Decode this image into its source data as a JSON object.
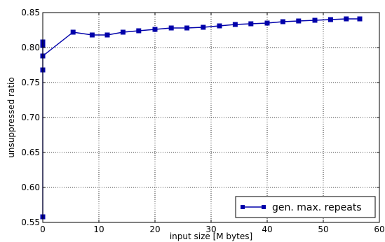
{
  "chart_data": {
    "type": "line",
    "title": "",
    "xlabel": "input size [M bytes]",
    "ylabel": "unsuppressed ratio",
    "xlim": [
      0,
      60
    ],
    "ylim": [
      0.55,
      0.85
    ],
    "xticks": [
      0,
      10,
      20,
      30,
      40,
      50,
      60
    ],
    "yticks": [
      0.55,
      0.6,
      0.65,
      0.7,
      0.75,
      0.8,
      0.85
    ],
    "xtick_labels": [
      "0",
      "10",
      "20",
      "30",
      "40",
      "50",
      "60"
    ],
    "ytick_labels": [
      "0.55",
      "0.60",
      "0.65",
      "0.70",
      "0.75",
      "0.80",
      "0.85"
    ],
    "grid": true,
    "legend_position": "bottom-right",
    "series": [
      {
        "name": "gen. max. repeats",
        "color": "#0000aa",
        "marker": "square",
        "x": [
          0.0,
          0.0,
          0.0,
          0.0,
          0.0,
          5.4,
          8.8,
          11.5,
          14.3,
          17.1,
          20.0,
          22.9,
          25.7,
          28.6,
          31.5,
          34.3,
          37.1,
          40.0,
          42.8,
          45.6,
          48.5,
          51.3,
          54.1,
          56.5
        ],
        "y": [
          0.558,
          0.768,
          0.803,
          0.808,
          0.788,
          0.822,
          0.818,
          0.818,
          0.822,
          0.824,
          0.826,
          0.828,
          0.828,
          0.829,
          0.831,
          0.833,
          0.834,
          0.835,
          0.837,
          0.838,
          0.839,
          0.84,
          0.841,
          0.841
        ]
      }
    ]
  }
}
